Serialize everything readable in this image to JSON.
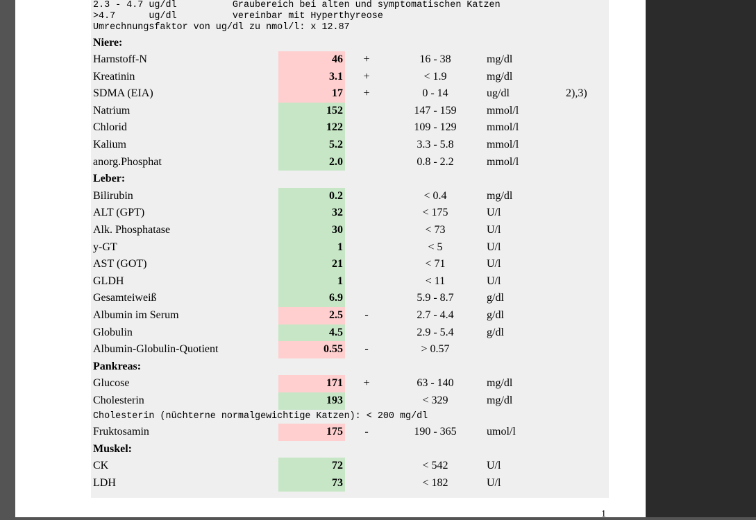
{
  "header_lines": [
    "2.3 - 4.7 ug/dl          Graubereich bei alten und symptomatischen Katzen",
    ">4.7      ug/dl          vereinbar mit Hyperthyreose",
    "Umrechnungsfaktor von ug/dl zu nmol/l: x 12.87"
  ],
  "sections": {
    "niere": "Niere:",
    "leber": "Leber:",
    "pankreas": "Pankreas:",
    "muskel": "Muskel:"
  },
  "rows": [
    {
      "name": "Harnstoff-N",
      "value": "46",
      "status": "high",
      "flag": "+",
      "range": "16 - 38",
      "unit": "mg/dl",
      "note": ""
    },
    {
      "name": "Kreatinin",
      "value": "3.1",
      "status": "high",
      "flag": "+",
      "range": "< 1.9",
      "unit": "mg/dl",
      "note": ""
    },
    {
      "name": "SDMA (EIA)",
      "value": "17",
      "status": "high",
      "flag": "+",
      "range": "0 - 14",
      "unit": "ug/dl",
      "note": "2),3)"
    },
    {
      "name": "Natrium",
      "value": "152",
      "status": "normal",
      "flag": "",
      "range": "147 - 159",
      "unit": "mmol/l",
      "note": ""
    },
    {
      "name": "Chlorid",
      "value": "122",
      "status": "normal",
      "flag": "",
      "range": "109 - 129",
      "unit": "mmol/l",
      "note": ""
    },
    {
      "name": "Kalium",
      "value": "5.2",
      "status": "normal",
      "flag": "",
      "range": "3.3 - 5.8",
      "unit": "mmol/l",
      "note": ""
    },
    {
      "name": "anorg.Phosphat",
      "value": "2.0",
      "status": "normal",
      "flag": "",
      "range": "0.8 - 2.2",
      "unit": "mmol/l",
      "note": ""
    },
    {
      "name": "Bilirubin",
      "value": "0.2",
      "status": "normal",
      "flag": "",
      "range": "< 0.4",
      "unit": "mg/dl",
      "note": ""
    },
    {
      "name": "ALT (GPT)",
      "value": "32",
      "status": "normal",
      "flag": "",
      "range": "< 175",
      "unit": "U/l",
      "note": ""
    },
    {
      "name": "Alk. Phosphatase",
      "value": "30",
      "status": "normal",
      "flag": "",
      "range": "< 73",
      "unit": "U/l",
      "note": ""
    },
    {
      "name": "y-GT",
      "value": "1",
      "status": "normal",
      "flag": "",
      "range": "< 5",
      "unit": "U/l",
      "note": ""
    },
    {
      "name": "AST (GOT)",
      "value": "21",
      "status": "normal",
      "flag": "",
      "range": "< 71",
      "unit": "U/l",
      "note": ""
    },
    {
      "name": "GLDH",
      "value": "1",
      "status": "normal",
      "flag": "",
      "range": "< 11",
      "unit": "U/l",
      "note": ""
    },
    {
      "name": "Gesamteiweiß",
      "value": "6.9",
      "status": "normal",
      "flag": "",
      "range": "5.9 - 8.7",
      "unit": "g/dl",
      "note": ""
    },
    {
      "name": "Albumin im Serum",
      "value": "2.5",
      "status": "low",
      "flag": "-",
      "range": "2.7 - 4.4",
      "unit": "g/dl",
      "note": ""
    },
    {
      "name": "Globulin",
      "value": "4.5",
      "status": "normal",
      "flag": "",
      "range": "2.9 - 5.4",
      "unit": "g/dl",
      "note": ""
    },
    {
      "name": "Albumin-Globulin-Quotient",
      "value": "0.55",
      "status": "low",
      "flag": "-",
      "range": "> 0.57",
      "unit": "",
      "note": ""
    },
    {
      "name": "Glucose",
      "value": "171",
      "status": "high",
      "flag": "+",
      "range": "63 - 140",
      "unit": "mg/dl",
      "note": ""
    },
    {
      "name": "Cholesterin",
      "value": "193",
      "status": "normal",
      "flag": "",
      "range": "< 329",
      "unit": "mg/dl",
      "note": ""
    },
    {
      "name": "Fruktosamin",
      "value": "175",
      "status": "low",
      "flag": "-",
      "range": "190 - 365",
      "unit": "umol/l",
      "note": ""
    },
    {
      "name": "CK",
      "value": "72",
      "status": "normal",
      "flag": "",
      "range": "< 542",
      "unit": "U/l",
      "note": ""
    },
    {
      "name": "LDH",
      "value": "73",
      "status": "normal",
      "flag": "",
      "range": "< 182",
      "unit": "U/l",
      "note": ""
    }
  ],
  "cholesterin_note": "Cholesterin (nüchterne normalgewichtige Katzen): < 200 mg/dl",
  "page_number": "1",
  "colors": {
    "normal": "#c6e6c6",
    "abnormal": "#ffcfcf"
  }
}
